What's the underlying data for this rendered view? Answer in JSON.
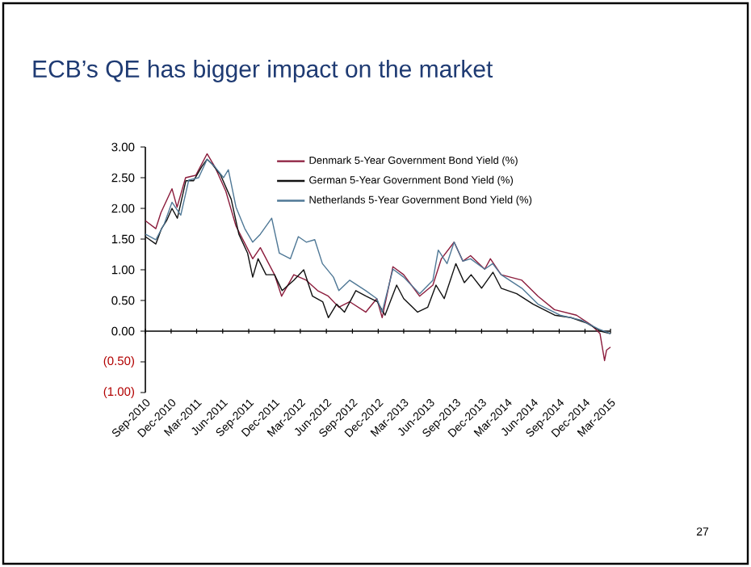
{
  "chart_data": {
    "type": "line",
    "title": "ECB’s QE has bigger impact on the market",
    "annotations": [
      "27"
    ],
    "xlim": [
      "2010-09-01",
      "2015-03-01"
    ],
    "xticks": [
      {
        "value": "2010-09-01",
        "label": "Sep-2010"
      },
      {
        "value": "2010-12-01",
        "label": "Dec-2010"
      },
      {
        "value": "2011-03-01",
        "label": "Mar-2011"
      },
      {
        "value": "2011-06-01",
        "label": "Jun-2011"
      },
      {
        "value": "2011-09-01",
        "label": "Sep-2011"
      },
      {
        "value": "2011-12-01",
        "label": "Dec-2011"
      },
      {
        "value": "2012-03-01",
        "label": "Mar-2012"
      },
      {
        "value": "2012-06-01",
        "label": "Jun-2012"
      },
      {
        "value": "2012-09-01",
        "label": "Sep-2012"
      },
      {
        "value": "2012-12-01",
        "label": "Dec-2012"
      },
      {
        "value": "2013-03-01",
        "label": "Mar-2013"
      },
      {
        "value": "2013-06-01",
        "label": "Jun-2013"
      },
      {
        "value": "2013-09-01",
        "label": "Sep-2013"
      },
      {
        "value": "2013-12-01",
        "label": "Dec-2013"
      },
      {
        "value": "2014-03-01",
        "label": "Mar-2014"
      },
      {
        "value": "2014-06-01",
        "label": "Jun-2014"
      },
      {
        "value": "2014-09-01",
        "label": "Sep-2014"
      },
      {
        "value": "2014-12-01",
        "label": "Dec-2014"
      },
      {
        "value": "2015-03-01",
        "label": "Mar-2015"
      }
    ],
    "ylim": [
      -1,
      3
    ],
    "yticks": [
      {
        "value": 3,
        "label": "3.00"
      },
      {
        "value": 2.5,
        "label": "2.50"
      },
      {
        "value": 2,
        "label": "2.00"
      },
      {
        "value": 1.5,
        "label": "1.50"
      },
      {
        "value": 1,
        "label": "1.00"
      },
      {
        "value": 0.5,
        "label": "0.50"
      },
      {
        "value": 0,
        "label": "0.00"
      },
      {
        "value": -0.5,
        "label": "(0.50)"
      },
      {
        "value": -1,
        "label": "(1.00)"
      }
    ],
    "legend": "top",
    "marker": "none",
    "line_style": "solid",
    "series": [
      {
        "name": "Denmark 5-Year Government Bond Yield (%)",
        "color": "#8b1c3c",
        "x": [
          "2010-09-01",
          "2010-10-08",
          "2010-10-26",
          "2010-12-04",
          "2010-12-22",
          "2011-01-21",
          "2011-02-26",
          "2011-04-07",
          "2011-05-04",
          "2011-06-12",
          "2011-07-18",
          "2011-08-26",
          "2011-09-15",
          "2011-10-12",
          "2011-12-01",
          "2011-12-26",
          "2012-02-07",
          "2012-03-22",
          "2012-05-01",
          "2012-06-08",
          "2012-07-15",
          "2012-08-22",
          "2012-10-18",
          "2012-11-26",
          "2012-12-15",
          "2013-01-22",
          "2013-03-01",
          "2013-04-26",
          "2013-06-12",
          "2013-07-12",
          "2013-08-26",
          "2013-09-26",
          "2013-10-23",
          "2013-12-12",
          "2014-01-01",
          "2014-02-08",
          "2014-04-22",
          "2014-06-18",
          "2014-08-15",
          "2014-11-01",
          "2014-12-26",
          "2015-01-23",
          "2015-02-08",
          "2015-02-15",
          "2015-03-01"
        ],
        "values": [
          1.8,
          1.67,
          1.93,
          2.32,
          2.02,
          2.5,
          2.54,
          2.89,
          2.68,
          2.28,
          1.71,
          1.36,
          1.18,
          1.36,
          0.92,
          0.57,
          0.92,
          0.83,
          0.66,
          0.57,
          0.39,
          0.48,
          0.31,
          0.53,
          0.22,
          1.05,
          0.92,
          0.57,
          0.75,
          1.18,
          1.45,
          1.14,
          1.23,
          1.01,
          1.18,
          0.92,
          0.83,
          0.57,
          0.35,
          0.26,
          0.09,
          -0.04,
          -0.48,
          -0.31,
          -0.26
        ]
      },
      {
        "name": "German 5-Year Government Bond Yield (%)",
        "color": "#111111",
        "x": [
          "2010-09-01",
          "2010-10-08",
          "2010-10-28",
          "2010-11-15",
          "2010-12-04",
          "2010-12-23",
          "2011-01-22",
          "2011-02-18",
          "2011-03-19",
          "2011-04-07",
          "2011-04-25",
          "2011-05-24",
          "2011-07-01",
          "2011-07-28",
          "2011-08-28",
          "2011-09-15",
          "2011-10-04",
          "2011-11-01",
          "2011-12-01",
          "2011-12-28",
          "2012-02-07",
          "2012-03-13",
          "2012-04-13",
          "2012-05-19",
          "2012-06-08",
          "2012-07-07",
          "2012-08-04",
          "2012-09-13",
          "2012-10-19",
          "2012-11-28",
          "2012-12-25",
          "2013-02-04",
          "2013-03-01",
          "2013-04-19",
          "2013-05-25",
          "2013-06-23",
          "2013-07-22",
          "2013-09-01",
          "2013-10-01",
          "2013-10-25",
          "2013-12-01",
          "2014-01-10",
          "2014-02-08",
          "2014-04-04",
          "2014-06-01",
          "2014-08-16",
          "2014-10-13",
          "2014-12-08",
          "2015-01-25",
          "2015-03-01"
        ],
        "values": [
          1.54,
          1.42,
          1.67,
          1.8,
          2.0,
          1.84,
          2.45,
          2.45,
          2.68,
          2.8,
          2.72,
          2.55,
          2.15,
          1.58,
          1.27,
          0.88,
          1.18,
          0.92,
          0.92,
          0.66,
          0.83,
          1.0,
          0.57,
          0.48,
          0.22,
          0.44,
          0.31,
          0.66,
          0.57,
          0.48,
          0.26,
          0.75,
          0.53,
          0.31,
          0.39,
          0.75,
          0.53,
          1.1,
          0.79,
          0.92,
          0.7,
          0.96,
          0.7,
          0.61,
          0.44,
          0.26,
          0.22,
          0.13,
          0.0,
          -0.04
        ]
      },
      {
        "name": "Netherlands 5-Year Government Bond Yield (%)",
        "color": "#4f7896",
        "x": [
          "2010-09-01",
          "2010-10-08",
          "2010-11-07",
          "2010-12-04",
          "2011-01-04",
          "2011-02-01",
          "2011-03-08",
          "2011-04-07",
          "2011-05-04",
          "2011-06-04",
          "2011-06-21",
          "2011-07-18",
          "2011-08-18",
          "2011-09-15",
          "2011-10-12",
          "2011-11-21",
          "2011-12-18",
          "2012-01-26",
          "2012-02-23",
          "2012-03-22",
          "2012-04-21",
          "2012-05-18",
          "2012-06-26",
          "2012-07-15",
          "2012-08-22",
          "2012-10-18",
          "2012-11-26",
          "2012-12-15",
          "2013-01-22",
          "2013-03-01",
          "2013-04-26",
          "2013-06-12",
          "2013-07-01",
          "2013-08-01",
          "2013-08-26",
          "2013-09-26",
          "2013-10-23",
          "2013-12-12",
          "2014-01-09",
          "2014-02-08",
          "2014-04-22",
          "2014-06-18",
          "2014-09-04",
          "2014-11-18",
          "2015-01-15",
          "2015-03-01"
        ],
        "values": [
          1.58,
          1.49,
          1.75,
          2.1,
          1.89,
          2.46,
          2.5,
          2.8,
          2.68,
          2.5,
          2.63,
          2.02,
          1.67,
          1.45,
          1.58,
          1.84,
          1.27,
          1.18,
          1.54,
          1.45,
          1.49,
          1.1,
          0.88,
          0.66,
          0.83,
          0.66,
          0.53,
          0.31,
          1.01,
          0.88,
          0.61,
          0.83,
          1.32,
          1.1,
          1.45,
          1.14,
          1.18,
          1.01,
          1.1,
          0.92,
          0.7,
          0.44,
          0.26,
          0.18,
          0.04,
          -0.04
        ]
      }
    ]
  }
}
